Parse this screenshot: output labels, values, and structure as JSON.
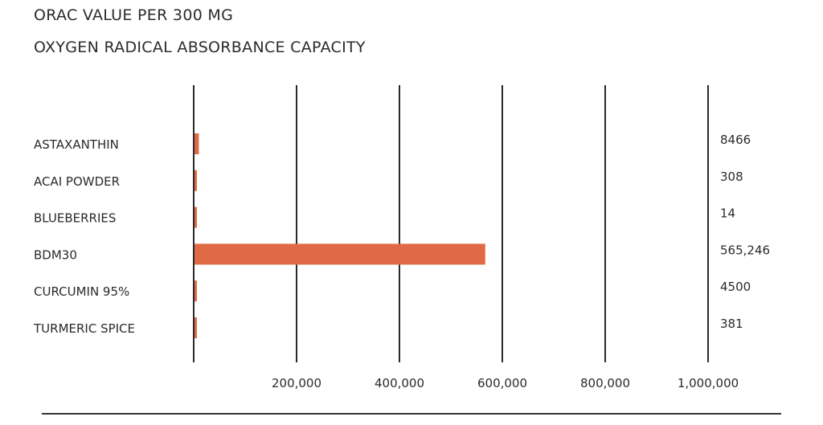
{
  "chart_data": {
    "type": "bar",
    "orientation": "horizontal",
    "title": "ORAC VALUE PER 300 MG",
    "subtitle": "OXYGEN RADICAL ABSORBANCE CAPACITY",
    "categories": [
      "ASTAXANTHIN",
      "ACAI POWDER",
      "BLUEBERRIES",
      "BDM30",
      "CURCUMIN 95%",
      "TURMERIC SPICE"
    ],
    "values": [
      8466,
      308,
      14,
      565246,
      4500,
      381
    ],
    "value_labels": [
      "8466",
      "308",
      "14",
      "565,246",
      "4500",
      "381"
    ],
    "xlim": [
      0,
      1000000
    ],
    "x_ticks": [
      200000,
      400000,
      600000,
      800000,
      1000000
    ],
    "x_tick_labels": [
      "200,000",
      "400,000",
      "600,000",
      "800,000",
      "1,000,000"
    ],
    "bar_color": "#e06a45",
    "grid": true,
    "legend": "none"
  }
}
